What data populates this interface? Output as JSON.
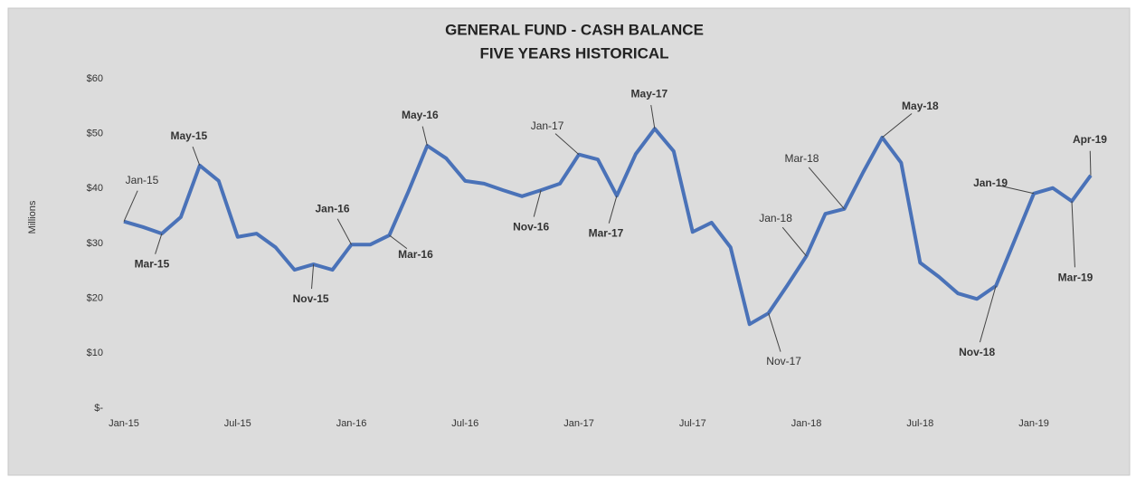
{
  "chart_data": {
    "type": "line",
    "title": "GENERAL FUND - CASH BALANCE",
    "subtitle": "FIVE YEARS HISTORICAL",
    "y_label": "Millions",
    "color": "#4a72b8",
    "categories": [
      "Jan-15",
      null,
      null,
      null,
      null,
      null,
      "Jul-15",
      null,
      null,
      null,
      null,
      null,
      "Jan-16",
      null,
      null,
      null,
      null,
      null,
      "Jul-16",
      null,
      null,
      null,
      null,
      null,
      "Jan-17",
      null,
      null,
      null,
      null,
      null,
      "Jul-17",
      null,
      null,
      null,
      null,
      null,
      "Jan-18",
      null,
      null,
      null,
      null,
      null,
      "Jul-18",
      null,
      null,
      null,
      null,
      null,
      "Jan-19",
      null,
      null,
      null
    ],
    "values": [
      34.0,
      33.0,
      31.8,
      34.8,
      44.2,
      41.4,
      31.2,
      31.8,
      29.3,
      25.2,
      26.2,
      25.2,
      29.8,
      29.8,
      31.5,
      39.4,
      47.8,
      45.5,
      41.4,
      40.9,
      39.7,
      38.6,
      39.7,
      40.9,
      46.2,
      45.3,
      38.7,
      46.3,
      50.9,
      46.8,
      32.1,
      33.8,
      29.3,
      15.3,
      17.3,
      22.4,
      27.7,
      35.4,
      36.3,
      43.0,
      49.3,
      44.7,
      26.5,
      23.9,
      20.9,
      19.9,
      22.3,
      30.7,
      39.1,
      40.1,
      37.7,
      42.4
    ],
    "point_labels": [
      "Jan-15",
      null,
      "Mar-15",
      null,
      "May-15",
      null,
      null,
      null,
      null,
      null,
      "Nov-15",
      null,
      "Jan-16",
      null,
      "Mar-16",
      null,
      "May-16",
      null,
      null,
      null,
      null,
      null,
      "Nov-16",
      null,
      "Jan-17",
      null,
      "Mar-17",
      null,
      "May-17",
      null,
      null,
      null,
      null,
      null,
      "Nov-17",
      null,
      "Jan-18",
      null,
      "Mar-18",
      null,
      "May-18",
      null,
      null,
      null,
      null,
      null,
      "Nov-18",
      null,
      "Jan-19",
      null,
      "Mar-19",
      "Apr-19"
    ],
    "ylim": [
      0,
      60
    ],
    "yticks": [
      {
        "value": 0,
        "label": "$-"
      },
      {
        "value": 10,
        "label": "$10"
      },
      {
        "value": 20,
        "label": "$20"
      },
      {
        "value": 30,
        "label": "$30"
      },
      {
        "value": 40,
        "label": "$40"
      },
      {
        "value": 50,
        "label": "$50"
      },
      {
        "value": 60,
        "label": "$60"
      }
    ],
    "grid": false
  }
}
